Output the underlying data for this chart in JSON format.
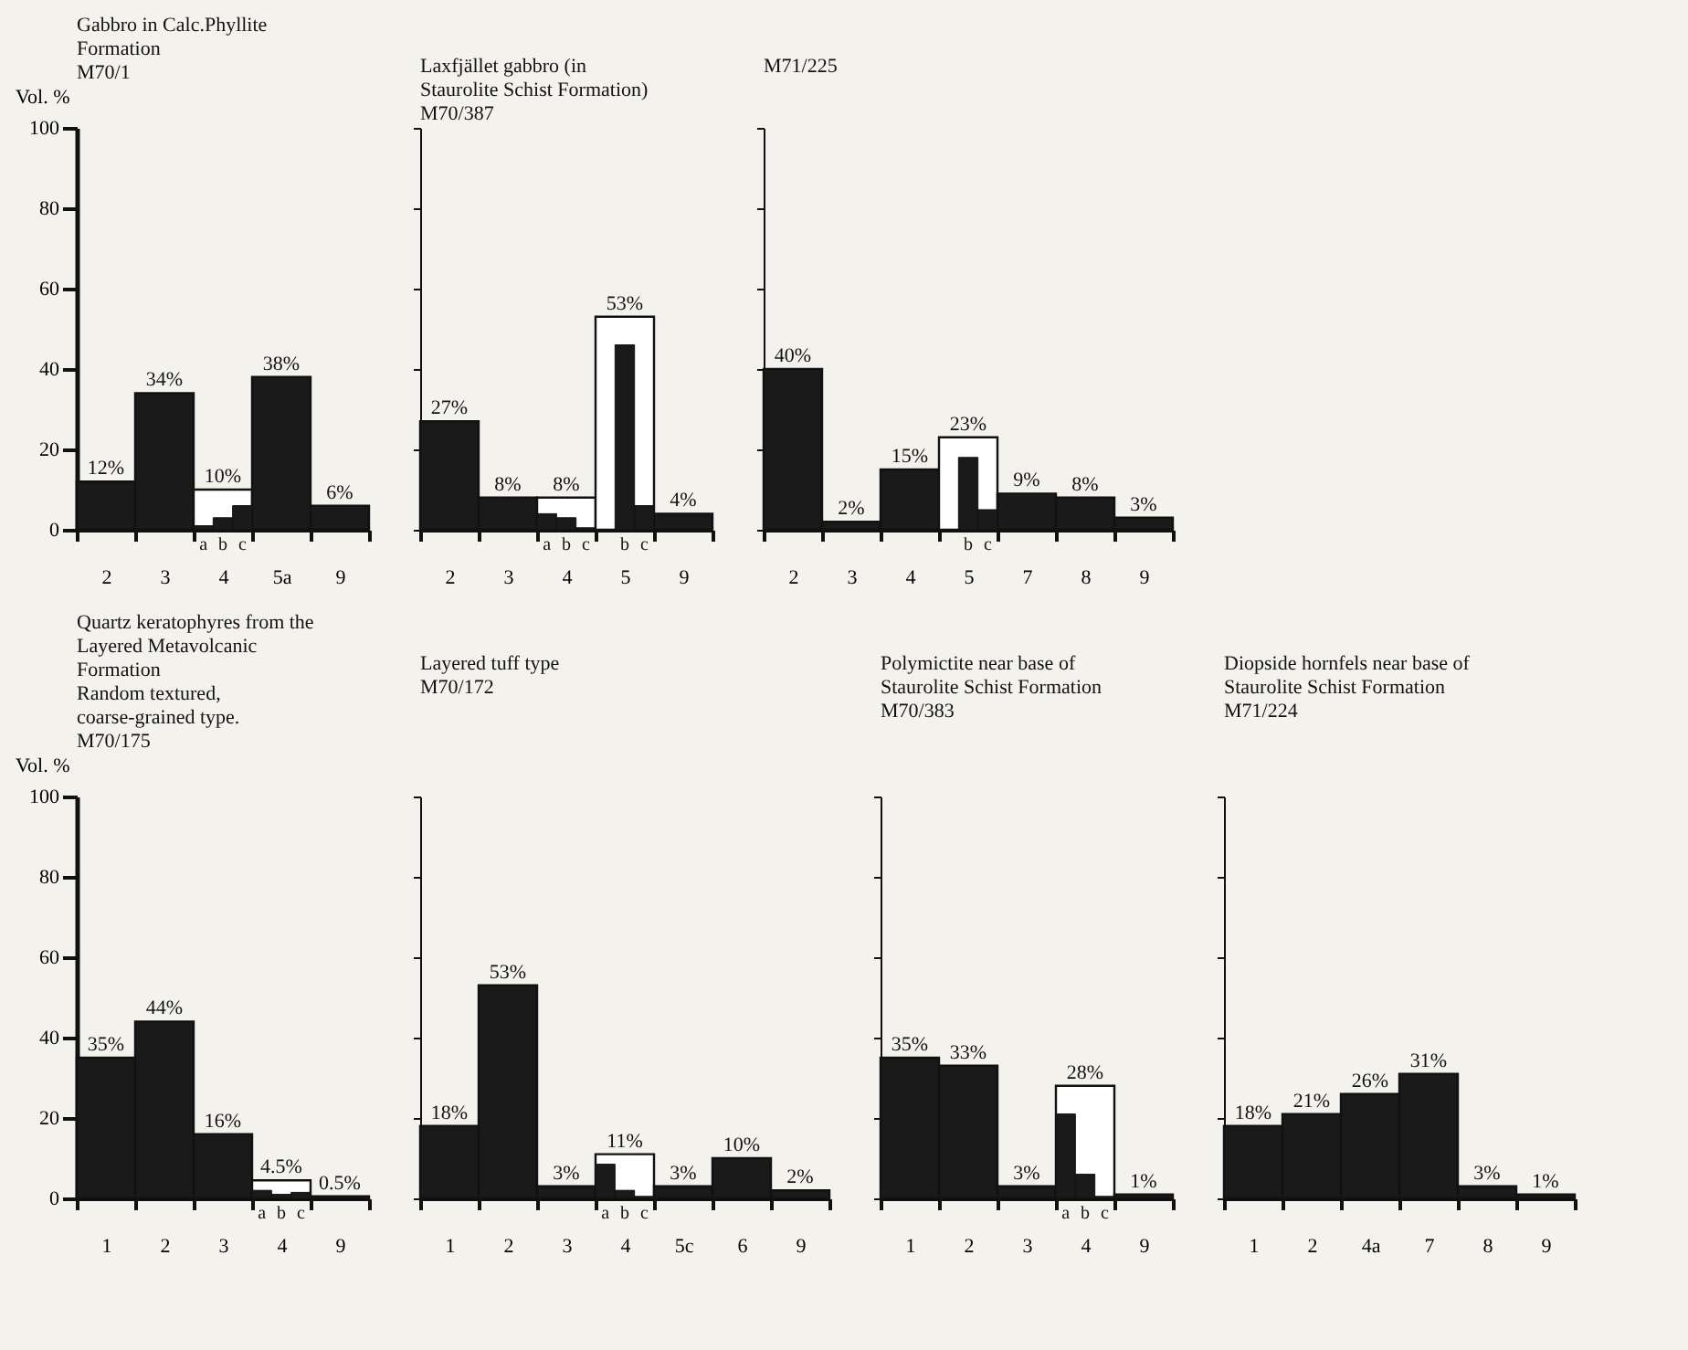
{
  "chart_data": [
    {
      "type": "bar",
      "title": "Gabbro in Calc.Phyllite Formation",
      "annotations": [
        "M70/1"
      ],
      "ylabel": "Vol. %",
      "categories": [
        "2",
        "3",
        "4",
        "5a",
        "9"
      ],
      "ylim": [
        0,
        100
      ],
      "yticks": [
        0,
        20,
        40,
        60,
        80,
        100
      ],
      "series": [
        {
          "values": [
            12,
            34,
            10,
            38,
            6
          ],
          "colors": [
            "#1a1a1a",
            "#1a1a1a",
            "#ffffff",
            "#1a1a1a",
            "#1a1a1a"
          ],
          "value_labels": [
            "12%",
            "34%",
            "10%",
            "38%",
            "6%"
          ]
        },
        {
          "name": "a",
          "color": "#1a1a1a",
          "values": [
            null,
            null,
            1,
            null,
            null
          ]
        },
        {
          "name": "b",
          "color": "#1a1a1a",
          "values": [
            null,
            null,
            3,
            null,
            null
          ]
        },
        {
          "name": "c",
          "color": "#1a1a1a",
          "values": [
            null,
            null,
            6,
            null,
            null
          ]
        }
      ]
    },
    {
      "type": "bar",
      "title": "Laxfjället gabbro (in Staurolite Schist Formation)",
      "annotations": [
        "M70/387"
      ],
      "categories": [
        "2",
        "3",
        "4",
        "5",
        "9"
      ],
      "ylim": [
        0,
        100
      ],
      "yticks": [
        0,
        20,
        40,
        60,
        80,
        100
      ],
      "tick_labels": "x",
      "series": [
        {
          "values": [
            27,
            8,
            8,
            53,
            4
          ],
          "colors": [
            "#1a1a1a",
            "#1a1a1a",
            "#ffffff",
            "#ffffff",
            "#1a1a1a"
          ],
          "value_labels": [
            "27%",
            "8%",
            "8%",
            "53%",
            "4%"
          ]
        },
        {
          "name": "a",
          "color": "#1a1a1a",
          "values": [
            null,
            null,
            4,
            null,
            null
          ]
        },
        {
          "name": "b",
          "color": "#1a1a1a",
          "values": [
            null,
            null,
            3,
            46,
            null
          ]
        },
        {
          "name": "c",
          "color": "#1a1a1a",
          "values": [
            null,
            null,
            0.5,
            6,
            null
          ]
        }
      ]
    },
    {
      "type": "bar",
      "annotations": [
        "M71/225"
      ],
      "categories": [
        "2",
        "3",
        "4",
        "5",
        "7",
        "8",
        "9"
      ],
      "ylim": [
        0,
        100
      ],
      "yticks": [
        0,
        20,
        40,
        60,
        80,
        100
      ],
      "tick_labels": "x",
      "series": [
        {
          "values": [
            40,
            2,
            15,
            23,
            9,
            8,
            3
          ],
          "colors": [
            "#1a1a1a",
            "#1a1a1a",
            "#1a1a1a",
            "#ffffff",
            "#1a1a1a",
            "#1a1a1a",
            "#1a1a1a"
          ],
          "value_labels": [
            "40%",
            "2%",
            "15%",
            "23%",
            "9%",
            "8%",
            "3%"
          ]
        },
        {
          "name": "b",
          "color": "#1a1a1a",
          "values": [
            null,
            null,
            null,
            18,
            null,
            null,
            null
          ]
        },
        {
          "name": "c",
          "color": "#1a1a1a",
          "values": [
            null,
            null,
            null,
            5,
            null,
            null,
            null
          ]
        }
      ]
    },
    {
      "type": "bar",
      "title": "Quartz keratophyres from the Layered Metavolcanic Formation",
      "subtitle": "Random textured, coarse-grained type.",
      "annotations": [
        "M70/175"
      ],
      "ylabel": "Vol. %",
      "categories": [
        "1",
        "2",
        "3",
        "4",
        "9"
      ],
      "ylim": [
        0,
        100
      ],
      "yticks": [
        0,
        20,
        40,
        60,
        80,
        100
      ],
      "series": [
        {
          "values": [
            35,
            44,
            16,
            4.5,
            0.5
          ],
          "colors": [
            "#1a1a1a",
            "#1a1a1a",
            "#1a1a1a",
            "#ffffff",
            "#1a1a1a"
          ],
          "value_labels": [
            "35%",
            "44%",
            "16%",
            "4.5%",
            "0.5%"
          ]
        },
        {
          "name": "a",
          "color": "#1a1a1a",
          "values": [
            null,
            null,
            null,
            2,
            null
          ]
        },
        {
          "name": "b",
          "color": "#1a1a1a",
          "values": [
            null,
            null,
            null,
            1,
            null
          ]
        },
        {
          "name": "c",
          "color": "#1a1a1a",
          "values": [
            null,
            null,
            null,
            1.5,
            null
          ]
        }
      ]
    },
    {
      "type": "bar",
      "subtitle": "Layered tuff type",
      "annotations": [
        "M70/172"
      ],
      "categories": [
        "1",
        "2",
        "3",
        "4",
        "5c",
        "6",
        "9"
      ],
      "ylim": [
        0,
        100
      ],
      "yticks": [
        0,
        20,
        40,
        60,
        80,
        100
      ],
      "tick_labels": "x",
      "series": [
        {
          "values": [
            18,
            53,
            3,
            11,
            3,
            10,
            2
          ],
          "colors": [
            "#1a1a1a",
            "#1a1a1a",
            "#1a1a1a",
            "#ffffff",
            "#1a1a1a",
            "#1a1a1a",
            "#1a1a1a"
          ],
          "value_labels": [
            "18%",
            "53%",
            "3%",
            "11%",
            "3%",
            "10%",
            "2%"
          ]
        },
        {
          "name": "a",
          "color": "#1a1a1a",
          "values": [
            null,
            null,
            null,
            8.5,
            null,
            null,
            null
          ]
        },
        {
          "name": "b",
          "color": "#1a1a1a",
          "values": [
            null,
            null,
            null,
            2,
            null,
            null,
            null
          ]
        },
        {
          "name": "c",
          "color": "#1a1a1a",
          "values": [
            null,
            null,
            null,
            0.5,
            null,
            null,
            null
          ]
        }
      ]
    },
    {
      "type": "bar",
      "title": "Polymictite near base of Staurolite Schist Formation",
      "annotations": [
        "M70/383"
      ],
      "categories": [
        "1",
        "2",
        "3",
        "4",
        "9"
      ],
      "ylim": [
        0,
        100
      ],
      "yticks": [
        0,
        20,
        40,
        60,
        80,
        100
      ],
      "tick_labels": "x",
      "series": [
        {
          "values": [
            35,
            33,
            3,
            28,
            1
          ],
          "colors": [
            "#1a1a1a",
            "#1a1a1a",
            "#1a1a1a",
            "#ffffff",
            "#1a1a1a"
          ],
          "value_labels": [
            "35%",
            "33%",
            "3%",
            "28%",
            "1%"
          ]
        },
        {
          "name": "a",
          "color": "#1a1a1a",
          "values": [
            null,
            null,
            null,
            21,
            null
          ]
        },
        {
          "name": "b",
          "color": "#1a1a1a",
          "values": [
            null,
            null,
            null,
            6,
            null
          ]
        },
        {
          "name": "c",
          "color": "#1a1a1a",
          "values": [
            null,
            null,
            null,
            0.5,
            null
          ]
        }
      ]
    },
    {
      "type": "bar",
      "title": "Diopside hornfels near base of Staurolite Schist Formation",
      "annotations": [
        "M71/224"
      ],
      "categories": [
        "1",
        "2",
        "4a",
        "7",
        "8",
        "9"
      ],
      "ylim": [
        0,
        100
      ],
      "yticks": [
        0,
        20,
        40,
        60,
        80,
        100
      ],
      "tick_labels": "x",
      "series": [
        {
          "values": [
            18,
            21,
            26,
            31,
            3,
            1
          ],
          "colors": [
            "#1a1a1a",
            "#1a1a1a",
            "#1a1a1a",
            "#1a1a1a",
            "#1a1a1a",
            "#1a1a1a"
          ],
          "value_labels": [
            "18%",
            "21%",
            "26%",
            "31%",
            "3%",
            "1%"
          ]
        }
      ]
    }
  ]
}
